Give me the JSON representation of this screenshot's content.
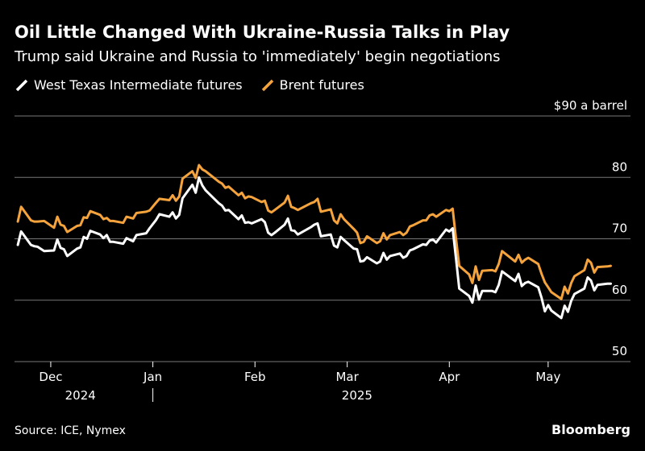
{
  "title": "Oil Little Changed With Ukraine-Russia Talks in Play",
  "subtitle": "Trump said Ukraine and Russia to 'immediately' begin negotiations",
  "source": "Source: ICE, Nymex",
  "brand": "Bloomberg",
  "colors": {
    "wti": "#ffffff",
    "brent": "#f5a33c",
    "grid": "#777777",
    "background": "#000000"
  },
  "chart_data": {
    "type": "line",
    "x_unit": "date",
    "xlim": [
      "2024-11-20",
      "2025-05-26"
    ],
    "ylim": [
      50,
      90
    ],
    "y_ticks": [
      50,
      60,
      70,
      80
    ],
    "y_top_label": "$90 a barrel",
    "x_ticks": [
      "2024-12-01",
      "2025-01-01",
      "2025-02-01",
      "2025-03-01",
      "2025-04-01",
      "2025-05-01"
    ],
    "x_tick_labels": [
      "Dec",
      "Jan",
      "Feb",
      "Mar",
      "Apr",
      "May"
    ],
    "year_labels": [
      {
        "label": "2024",
        "date": "2024-12-10"
      },
      {
        "label": "2025",
        "date": "2025-03-04"
      }
    ],
    "year_separator_date": "2025-01-01",
    "grid": true,
    "legend_position": "top-left",
    "series": [
      {
        "name": "West Texas Intermediate futures",
        "points": [
          [
            "2024-11-21",
            69.0
          ],
          [
            "2024-11-22",
            71.2
          ],
          [
            "2024-11-25",
            69.0
          ],
          [
            "2024-11-26",
            68.8
          ],
          [
            "2024-11-27",
            68.7
          ],
          [
            "2024-11-29",
            68.0
          ],
          [
            "2024-12-02",
            68.1
          ],
          [
            "2024-12-03",
            69.9
          ],
          [
            "2024-12-04",
            68.5
          ],
          [
            "2024-12-05",
            68.3
          ],
          [
            "2024-12-06",
            67.2
          ],
          [
            "2024-12-09",
            68.4
          ],
          [
            "2024-12-10",
            68.6
          ],
          [
            "2024-12-11",
            70.3
          ],
          [
            "2024-12-12",
            70.0
          ],
          [
            "2024-12-13",
            71.3
          ],
          [
            "2024-12-16",
            70.7
          ],
          [
            "2024-12-17",
            70.1
          ],
          [
            "2024-12-18",
            70.6
          ],
          [
            "2024-12-19",
            69.5
          ],
          [
            "2024-12-20",
            69.5
          ],
          [
            "2024-12-23",
            69.2
          ],
          [
            "2024-12-24",
            70.1
          ],
          [
            "2024-12-26",
            69.6
          ],
          [
            "2024-12-27",
            70.6
          ],
          [
            "2024-12-30",
            70.9
          ],
          [
            "2024-12-31",
            71.7
          ],
          [
            "2025-01-02",
            73.1
          ],
          [
            "2025-01-03",
            74.0
          ],
          [
            "2025-01-06",
            73.6
          ],
          [
            "2025-01-07",
            74.3
          ],
          [
            "2025-01-08",
            73.3
          ],
          [
            "2025-01-09",
            73.9
          ],
          [
            "2025-01-10",
            76.6
          ],
          [
            "2025-01-13",
            78.8
          ],
          [
            "2025-01-14",
            77.5
          ],
          [
            "2025-01-15",
            80.0
          ],
          [
            "2025-01-16",
            78.7
          ],
          [
            "2025-01-17",
            77.9
          ],
          [
            "2025-01-21",
            75.8
          ],
          [
            "2025-01-22",
            75.4
          ],
          [
            "2025-01-23",
            74.6
          ],
          [
            "2025-01-24",
            74.7
          ],
          [
            "2025-01-27",
            73.2
          ],
          [
            "2025-01-28",
            73.8
          ],
          [
            "2025-01-29",
            72.6
          ],
          [
            "2025-01-30",
            72.7
          ],
          [
            "2025-01-31",
            72.5
          ],
          [
            "2025-02-03",
            73.2
          ],
          [
            "2025-02-04",
            72.7
          ],
          [
            "2025-02-05",
            71.0
          ],
          [
            "2025-02-06",
            70.6
          ],
          [
            "2025-02-07",
            71.0
          ],
          [
            "2025-02-10",
            72.3
          ],
          [
            "2025-02-11",
            73.3
          ],
          [
            "2025-02-12",
            71.4
          ],
          [
            "2025-02-13",
            71.3
          ],
          [
            "2025-02-14",
            70.7
          ],
          [
            "2025-02-18",
            71.9
          ],
          [
            "2025-02-19",
            72.3
          ],
          [
            "2025-02-20",
            72.5
          ],
          [
            "2025-02-21",
            70.4
          ],
          [
            "2025-02-24",
            70.7
          ],
          [
            "2025-02-25",
            68.9
          ],
          [
            "2025-02-26",
            68.6
          ],
          [
            "2025-02-27",
            70.3
          ],
          [
            "2025-02-28",
            69.8
          ],
          [
            "2025-03-03",
            68.4
          ],
          [
            "2025-03-04",
            68.3
          ],
          [
            "2025-03-05",
            66.3
          ],
          [
            "2025-03-06",
            66.4
          ],
          [
            "2025-03-07",
            67.0
          ],
          [
            "2025-03-10",
            66.0
          ],
          [
            "2025-03-11",
            66.3
          ],
          [
            "2025-03-12",
            67.7
          ],
          [
            "2025-03-13",
            66.6
          ],
          [
            "2025-03-14",
            67.2
          ],
          [
            "2025-03-17",
            67.6
          ],
          [
            "2025-03-18",
            66.9
          ],
          [
            "2025-03-19",
            67.2
          ],
          [
            "2025-03-20",
            68.1
          ],
          [
            "2025-03-21",
            68.3
          ],
          [
            "2025-03-24",
            69.1
          ],
          [
            "2025-03-25",
            69.0
          ],
          [
            "2025-03-26",
            69.7
          ],
          [
            "2025-03-27",
            69.9
          ],
          [
            "2025-03-28",
            69.4
          ],
          [
            "2025-03-31",
            71.5
          ],
          [
            "2025-04-01",
            71.2
          ],
          [
            "2025-04-02",
            71.7
          ],
          [
            "2025-04-03",
            66.9
          ],
          [
            "2025-04-04",
            61.9
          ],
          [
            "2025-04-07",
            60.7
          ],
          [
            "2025-04-08",
            59.6
          ],
          [
            "2025-04-09",
            62.4
          ],
          [
            "2025-04-10",
            60.1
          ],
          [
            "2025-04-11",
            61.5
          ],
          [
            "2025-04-14",
            61.5
          ],
          [
            "2025-04-15",
            61.3
          ],
          [
            "2025-04-16",
            62.5
          ],
          [
            "2025-04-17",
            64.7
          ],
          [
            "2025-04-21",
            63.1
          ],
          [
            "2025-04-22",
            64.3
          ],
          [
            "2025-04-23",
            62.3
          ],
          [
            "2025-04-24",
            62.8
          ],
          [
            "2025-04-25",
            63.0
          ],
          [
            "2025-04-28",
            62.1
          ],
          [
            "2025-04-29",
            60.4
          ],
          [
            "2025-04-30",
            58.2
          ],
          [
            "2025-05-01",
            59.2
          ],
          [
            "2025-05-02",
            58.3
          ],
          [
            "2025-05-05",
            57.1
          ],
          [
            "2025-05-06",
            59.1
          ],
          [
            "2025-05-07",
            58.1
          ],
          [
            "2025-05-08",
            59.9
          ],
          [
            "2025-05-09",
            61.0
          ],
          [
            "2025-05-12",
            61.9
          ],
          [
            "2025-05-13",
            63.7
          ],
          [
            "2025-05-14",
            63.2
          ],
          [
            "2025-05-15",
            61.6
          ],
          [
            "2025-05-16",
            62.5
          ],
          [
            "2025-05-19",
            62.7
          ],
          [
            "2025-05-20",
            62.7
          ]
        ]
      },
      {
        "name": "Brent futures",
        "points": [
          [
            "2024-11-21",
            72.8
          ],
          [
            "2024-11-22",
            75.2
          ],
          [
            "2024-11-25",
            73.0
          ],
          [
            "2024-11-26",
            72.8
          ],
          [
            "2024-11-27",
            72.8
          ],
          [
            "2024-11-29",
            72.9
          ],
          [
            "2024-12-02",
            71.8
          ],
          [
            "2024-12-03",
            73.6
          ],
          [
            "2024-12-04",
            72.3
          ],
          [
            "2024-12-05",
            72.1
          ],
          [
            "2024-12-06",
            71.1
          ],
          [
            "2024-12-09",
            72.1
          ],
          [
            "2024-12-10",
            72.2
          ],
          [
            "2024-12-11",
            73.5
          ],
          [
            "2024-12-12",
            73.4
          ],
          [
            "2024-12-13",
            74.5
          ],
          [
            "2024-12-16",
            73.9
          ],
          [
            "2024-12-17",
            73.2
          ],
          [
            "2024-12-18",
            73.4
          ],
          [
            "2024-12-19",
            72.9
          ],
          [
            "2024-12-20",
            72.9
          ],
          [
            "2024-12-23",
            72.6
          ],
          [
            "2024-12-24",
            73.6
          ],
          [
            "2024-12-26",
            73.3
          ],
          [
            "2024-12-27",
            74.2
          ],
          [
            "2024-12-30",
            74.4
          ],
          [
            "2024-12-31",
            74.6
          ],
          [
            "2025-01-02",
            75.9
          ],
          [
            "2025-01-03",
            76.5
          ],
          [
            "2025-01-06",
            76.3
          ],
          [
            "2025-01-07",
            77.1
          ],
          [
            "2025-01-08",
            76.2
          ],
          [
            "2025-01-09",
            76.9
          ],
          [
            "2025-01-10",
            79.8
          ],
          [
            "2025-01-13",
            81.0
          ],
          [
            "2025-01-14",
            79.9
          ],
          [
            "2025-01-15",
            82.0
          ],
          [
            "2025-01-16",
            81.3
          ],
          [
            "2025-01-17",
            81.0
          ],
          [
            "2025-01-21",
            79.3
          ],
          [
            "2025-01-22",
            79.0
          ],
          [
            "2025-01-23",
            78.3
          ],
          [
            "2025-01-24",
            78.5
          ],
          [
            "2025-01-27",
            77.1
          ],
          [
            "2025-01-28",
            77.5
          ],
          [
            "2025-01-29",
            76.6
          ],
          [
            "2025-01-30",
            76.9
          ],
          [
            "2025-01-31",
            76.8
          ],
          [
            "2025-02-03",
            76.0
          ],
          [
            "2025-02-04",
            76.2
          ],
          [
            "2025-02-05",
            74.6
          ],
          [
            "2025-02-06",
            74.3
          ],
          [
            "2025-02-07",
            74.7
          ],
          [
            "2025-02-10",
            75.9
          ],
          [
            "2025-02-11",
            77.0
          ],
          [
            "2025-02-12",
            75.2
          ],
          [
            "2025-02-13",
            75.0
          ],
          [
            "2025-02-14",
            74.7
          ],
          [
            "2025-02-18",
            75.8
          ],
          [
            "2025-02-19",
            76.0
          ],
          [
            "2025-02-20",
            76.5
          ],
          [
            "2025-02-21",
            74.4
          ],
          [
            "2025-02-24",
            74.8
          ],
          [
            "2025-02-25",
            73.0
          ],
          [
            "2025-02-26",
            72.5
          ],
          [
            "2025-02-27",
            74.0
          ],
          [
            "2025-02-28",
            73.2
          ],
          [
            "2025-03-03",
            71.6
          ],
          [
            "2025-03-04",
            71.0
          ],
          [
            "2025-03-05",
            69.3
          ],
          [
            "2025-03-06",
            69.5
          ],
          [
            "2025-03-07",
            70.4
          ],
          [
            "2025-03-10",
            69.3
          ],
          [
            "2025-03-11",
            69.6
          ],
          [
            "2025-03-12",
            70.9
          ],
          [
            "2025-03-13",
            69.9
          ],
          [
            "2025-03-14",
            70.6
          ],
          [
            "2025-03-17",
            71.1
          ],
          [
            "2025-03-18",
            70.6
          ],
          [
            "2025-03-19",
            71.0
          ],
          [
            "2025-03-20",
            72.0
          ],
          [
            "2025-03-21",
            72.2
          ],
          [
            "2025-03-24",
            73.0
          ],
          [
            "2025-03-25",
            73.0
          ],
          [
            "2025-03-26",
            73.8
          ],
          [
            "2025-03-27",
            74.0
          ],
          [
            "2025-03-28",
            73.6
          ],
          [
            "2025-03-31",
            74.7
          ],
          [
            "2025-04-01",
            74.5
          ],
          [
            "2025-04-02",
            74.9
          ],
          [
            "2025-04-03",
            70.1
          ],
          [
            "2025-04-04",
            65.6
          ],
          [
            "2025-04-07",
            64.2
          ],
          [
            "2025-04-08",
            62.8
          ],
          [
            "2025-04-09",
            65.5
          ],
          [
            "2025-04-10",
            63.3
          ],
          [
            "2025-04-11",
            64.8
          ],
          [
            "2025-04-14",
            64.9
          ],
          [
            "2025-04-15",
            64.7
          ],
          [
            "2025-04-16",
            65.9
          ],
          [
            "2025-04-17",
            68.0
          ],
          [
            "2025-04-21",
            66.3
          ],
          [
            "2025-04-22",
            67.4
          ],
          [
            "2025-04-23",
            66.1
          ],
          [
            "2025-04-24",
            66.6
          ],
          [
            "2025-04-25",
            66.9
          ],
          [
            "2025-04-28",
            65.9
          ],
          [
            "2025-04-29",
            64.3
          ],
          [
            "2025-04-30",
            62.9
          ],
          [
            "2025-05-01",
            62.1
          ],
          [
            "2025-05-02",
            61.3
          ],
          [
            "2025-05-05",
            60.2
          ],
          [
            "2025-05-06",
            62.2
          ],
          [
            "2025-05-07",
            61.1
          ],
          [
            "2025-05-08",
            62.8
          ],
          [
            "2025-05-09",
            63.9
          ],
          [
            "2025-05-12",
            64.9
          ],
          [
            "2025-05-13",
            66.6
          ],
          [
            "2025-05-14",
            66.1
          ],
          [
            "2025-05-15",
            64.5
          ],
          [
            "2025-05-16",
            65.4
          ],
          [
            "2025-05-19",
            65.5
          ],
          [
            "2025-05-20",
            65.6
          ]
        ]
      }
    ]
  }
}
